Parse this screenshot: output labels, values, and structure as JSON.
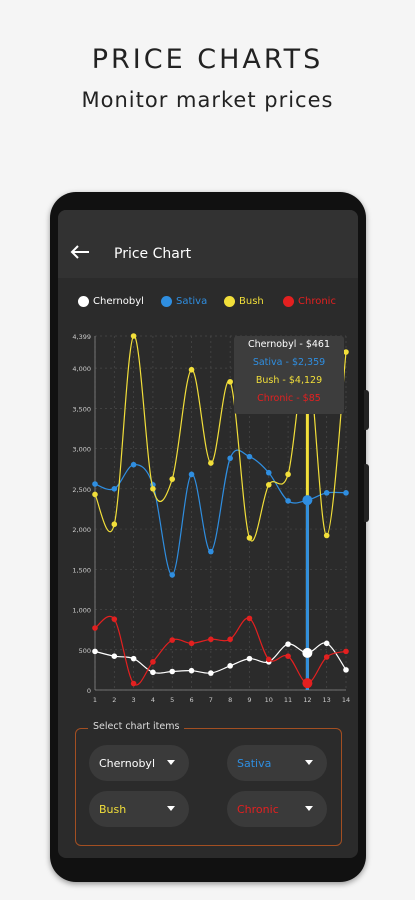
{
  "hero": {
    "title": "PRICE CHARTS",
    "subtitle": "Monitor market prices"
  },
  "appbar": {
    "title": "Price Chart",
    "back_icon": "arrow-left-icon"
  },
  "legend": [
    {
      "label": "Chernobyl",
      "color": "#ffffff"
    },
    {
      "label": "Sativa",
      "color": "#2f8ee0"
    },
    {
      "label": "Bush",
      "color": "#f2df3a"
    },
    {
      "label": "Chronic",
      "color": "#e32020"
    }
  ],
  "tooltip": {
    "lines": [
      {
        "text": "Chernobyl - $461",
        "color": "#ffffff"
      },
      {
        "text": "Sativa - $2,359",
        "color": "#2f8ee0"
      },
      {
        "text": "Bush - $4,129",
        "color": "#f2df3a"
      },
      {
        "text": "Chronic - $85",
        "color": "#e32020"
      }
    ]
  },
  "chart_data": {
    "type": "line",
    "x": [
      1,
      2,
      3,
      4,
      5,
      6,
      7,
      8,
      9,
      10,
      11,
      12,
      13,
      14
    ],
    "y_ticks": [
      "0",
      "500",
      "1,000",
      "1,500",
      "2,000",
      "2,500",
      "3,000",
      "3,500",
      "4,000",
      "4,399"
    ],
    "ylim": [
      0,
      4399
    ],
    "selected_x": 12,
    "series": [
      {
        "name": "Chernobyl",
        "color": "#ffffff",
        "values": [
          480,
          420,
          390,
          220,
          230,
          240,
          210,
          300,
          390,
          350,
          570,
          461,
          580,
          250
        ]
      },
      {
        "name": "Sativa",
        "color": "#2f8ee0",
        "values": [
          2560,
          2500,
          2800,
          2550,
          1430,
          2680,
          1720,
          2880,
          2900,
          2700,
          2350,
          2359,
          2450,
          2450
        ]
      },
      {
        "name": "Bush",
        "color": "#f2df3a",
        "values": [
          2430,
          2060,
          4399,
          2500,
          2620,
          3980,
          2820,
          3830,
          1890,
          2550,
          2680,
          4129,
          1920,
          4200
        ]
      },
      {
        "name": "Chronic",
        "color": "#e32020",
        "values": [
          770,
          880,
          80,
          350,
          620,
          580,
          630,
          630,
          890,
          380,
          420,
          85,
          410,
          480
        ]
      }
    ]
  },
  "selector": {
    "label": "Select chart items",
    "items": [
      {
        "label": "Chernobyl",
        "color": "#ffffff"
      },
      {
        "label": "Sativa",
        "color": "#2f8ee0"
      },
      {
        "label": "Bush",
        "color": "#f2df3a"
      },
      {
        "label": "Chronic",
        "color": "#e32020"
      }
    ]
  }
}
